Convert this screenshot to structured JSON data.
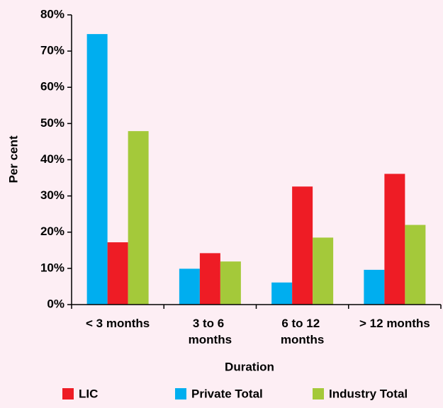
{
  "chart_data": {
    "type": "bar",
    "x_label": "Duration",
    "y_label": "Per cent",
    "categories": [
      "< 3 months",
      "3 to 6 months",
      "6 to 12 months",
      "> 12 months"
    ],
    "series": [
      {
        "name": "LIC",
        "color": "#ee1c25",
        "values": [
          17.2,
          14.2,
          32.6,
          36.1
        ]
      },
      {
        "name": "Private Total",
        "color": "#00aeef",
        "values": [
          74.7,
          9.9,
          6.1,
          9.6
        ]
      },
      {
        "name": "Industry Total",
        "color": "#a4c93a",
        "values": [
          47.9,
          11.9,
          18.5,
          22.0
        ]
      }
    ],
    "ylim": [
      0,
      80
    ],
    "yticks": [
      {
        "value": 0,
        "label": "0%"
      },
      {
        "value": 10,
        "label": "10%"
      },
      {
        "value": 20,
        "label": "20%"
      },
      {
        "value": 30,
        "label": "30%"
      },
      {
        "value": 40,
        "label": "40%"
      },
      {
        "value": 50,
        "label": "50%"
      },
      {
        "value": 60,
        "label": "60%"
      },
      {
        "value": 70,
        "label": "70%"
      },
      {
        "value": 80,
        "label": "80%"
      }
    ],
    "legend": "bottom",
    "grid": false
  }
}
